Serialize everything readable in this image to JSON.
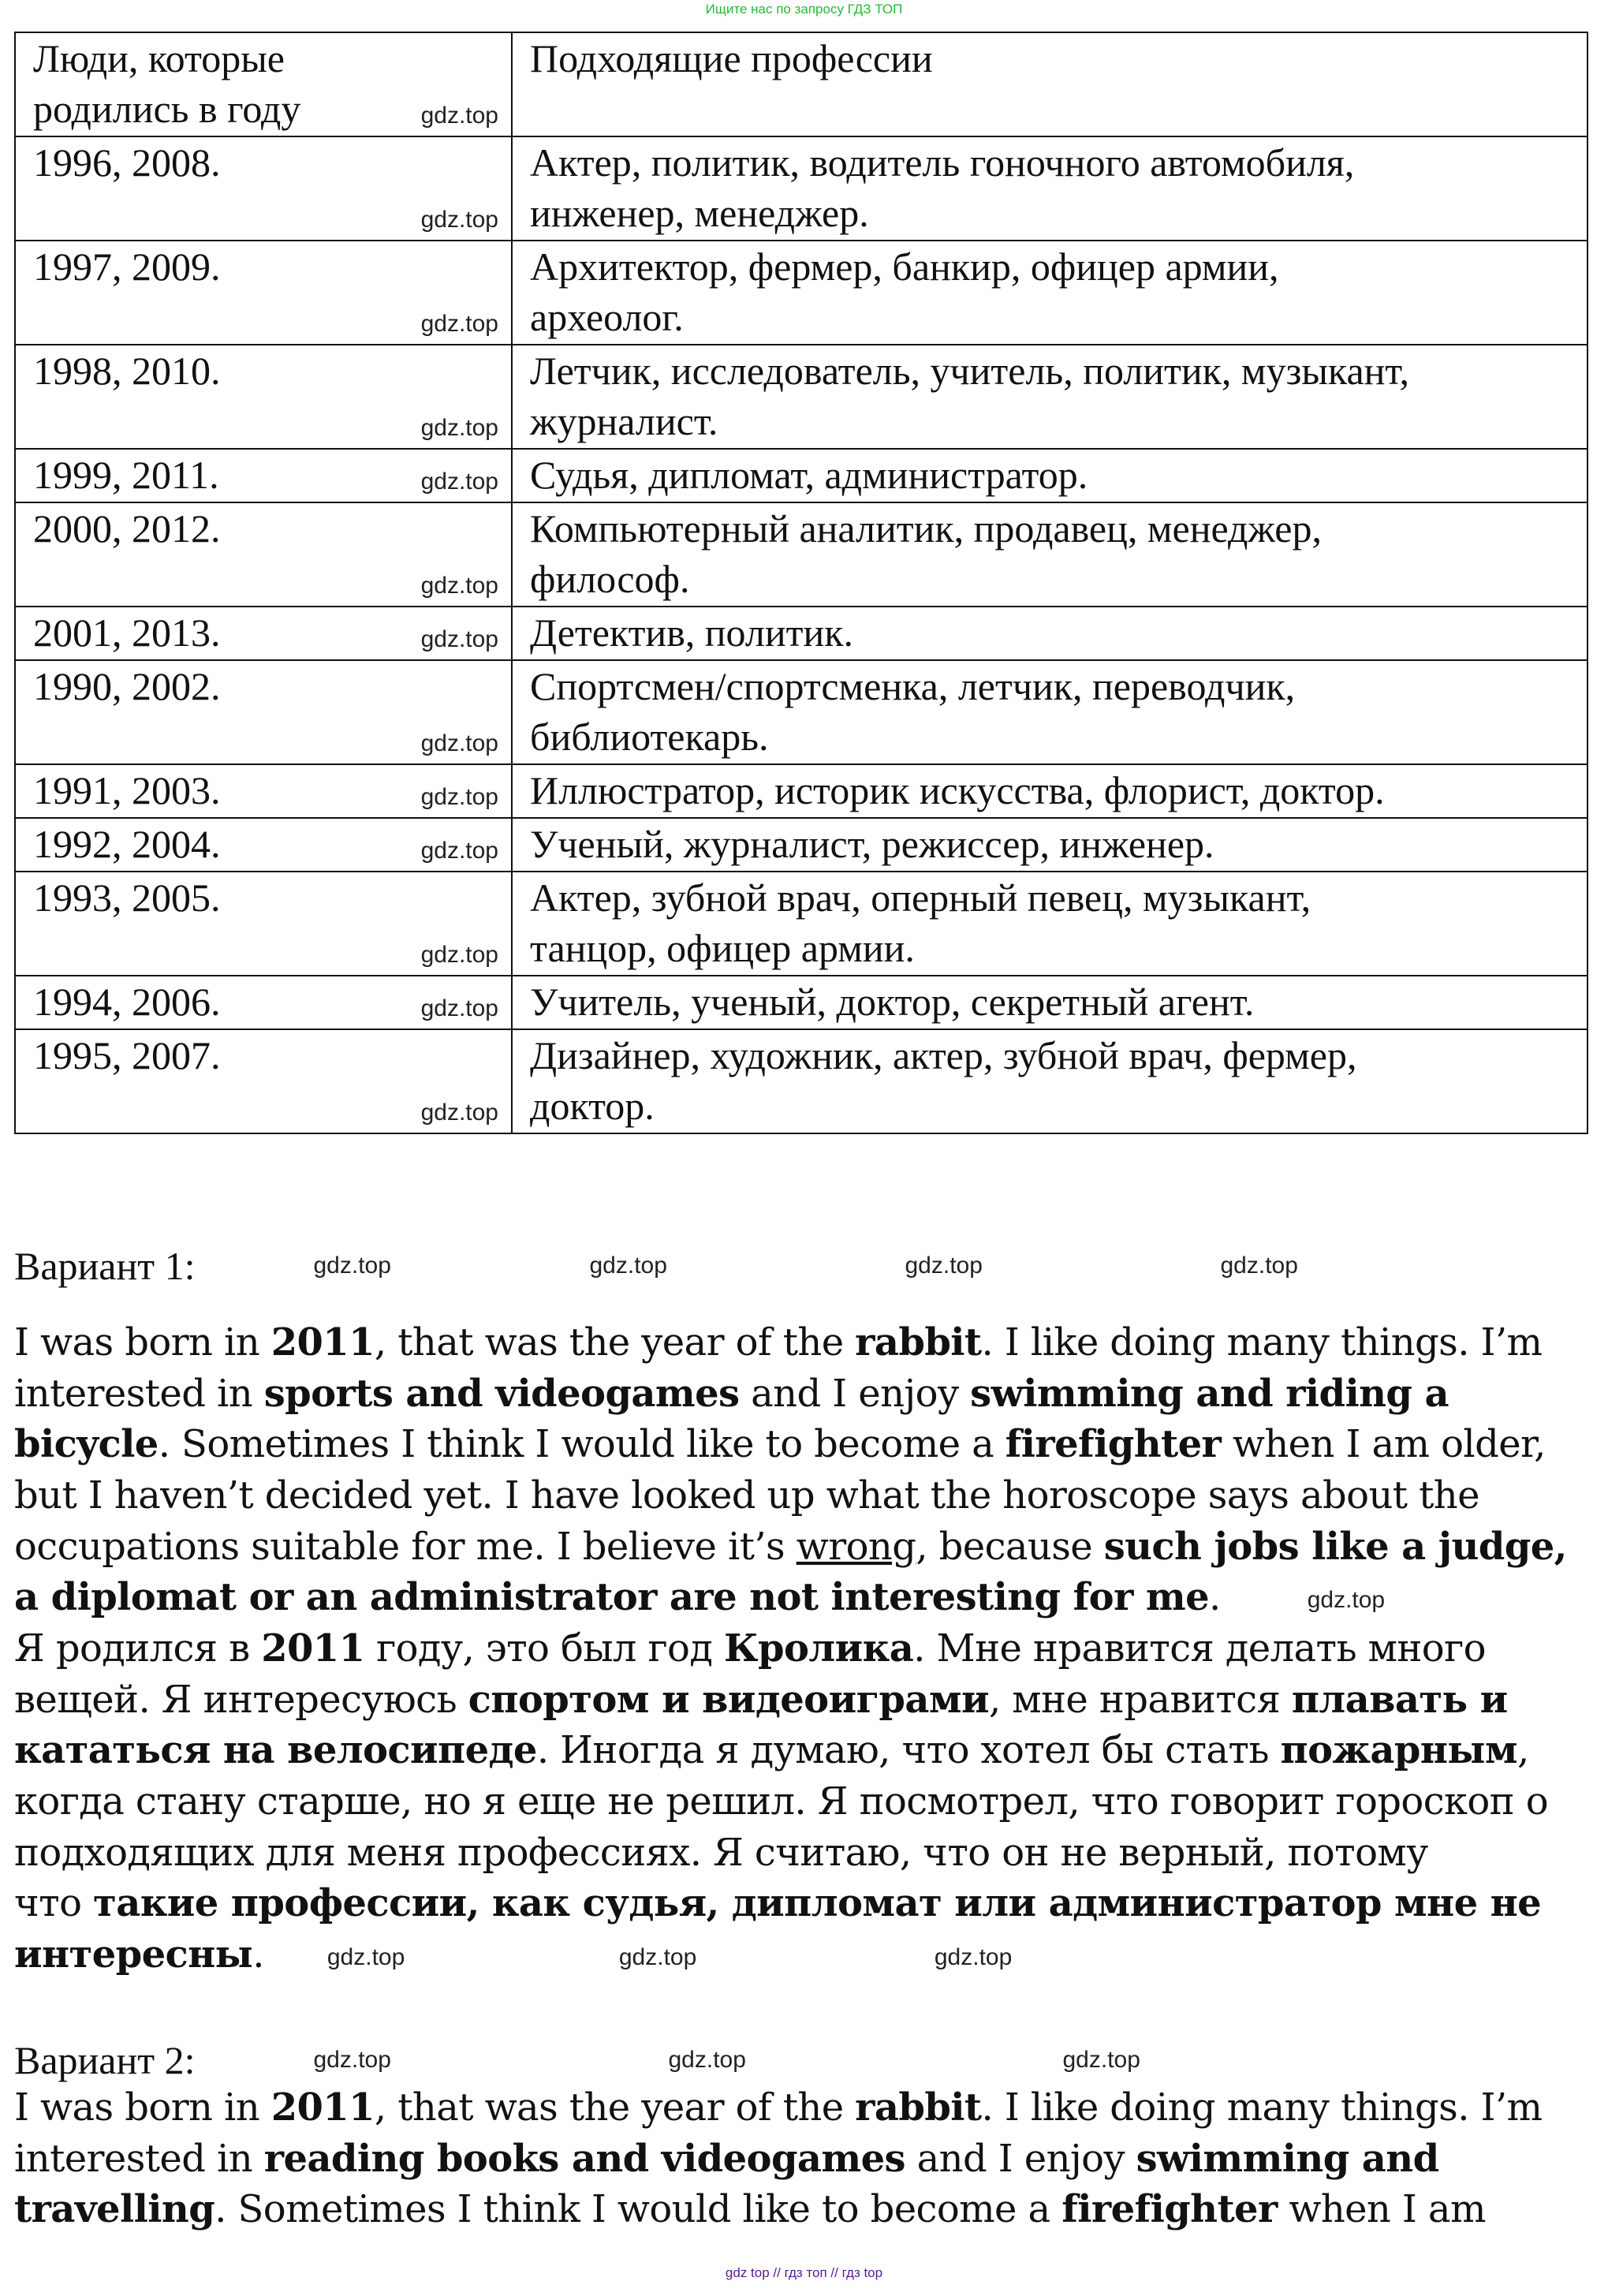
{
  "top_note": "Ищите нас по запросу ГДЗ ТОП",
  "watermark": "gdz.top",
  "footer": "gdz top  //  гдз топ  //  гдз top",
  "table": {
    "headers": [
      "Люди, которые\nродились в году",
      "Подходящие профессии"
    ],
    "rows": [
      [
        "1996, 2008.",
        "Актер, политик, водитель гоночного автомобиля,\nинженер, менеджер."
      ],
      [
        "1997, 2009.",
        "Архитектор, фермер, банкир, офицер армии,\nархеолог."
      ],
      [
        "1998, 2010.",
        "Летчик, исследователь, учитель, политик, музыкант,\nжурналист."
      ],
      [
        "1999, 2011.",
        "Судья, дипломат, администратор."
      ],
      [
        "2000, 2012.",
        "Компьютерный аналитик, продавец, менеджер,\nфилософ."
      ],
      [
        "2001, 2013.",
        "Детектив, политик."
      ],
      [
        "1990, 2002.",
        "Спортсмен/спортсменка, летчик, переводчик,\nбиблиотекарь."
      ],
      [
        "1991, 2003.",
        "Иллюстратор, историк искусства, флорист, доктор."
      ],
      [
        "1992, 2004.",
        "Ученый, журналист, режиссер, инженер."
      ],
      [
        "1993, 2005.",
        "Актер, зубной врач, оперный певец, музыкант,\nтанцор, офицер армии."
      ],
      [
        "1994, 2006.",
        "Учитель, ученый, доктор, секретный агент."
      ],
      [
        "1995, 2007.",
        "Дизайнер, художник, актер, зубной врач, фермер,\nдоктор."
      ]
    ]
  },
  "variant1": {
    "title": "Вариант 1:",
    "english": [
      [
        {
          "t": "I was born in "
        },
        {
          "t": "2011",
          "b": true
        },
        {
          "t": ", that was the year of the "
        },
        {
          "t": "rabbit",
          "b": true
        },
        {
          "t": ". I like doing many things. I’m"
        }
      ],
      [
        {
          "t": "interested in "
        },
        {
          "t": "sports and videogames",
          "b": true
        },
        {
          "t": " and I enjoy "
        },
        {
          "t": "swimming and riding a",
          "b": true
        }
      ],
      [
        {
          "t": "bicycle",
          "b": true
        },
        {
          "t": ". Sometimes I think I would like to become a "
        },
        {
          "t": "firefighter",
          "b": true
        },
        {
          "t": " when I am older,"
        }
      ],
      [
        {
          "t": "but I haven’t decided yet. I have looked up what the horoscope says about the"
        }
      ],
      [
        {
          "t": "occupations suitable for me. I believe it’s "
        },
        {
          "t": "wrong",
          "u": true
        },
        {
          "t": ", because "
        },
        {
          "t": "such jobs like a judge,",
          "b": true
        }
      ],
      [
        {
          "t": "a diplomat or an administrator are not interesting for me",
          "b": true
        },
        {
          "t": "."
        }
      ]
    ],
    "russian": [
      [
        {
          "t": "Я родился в "
        },
        {
          "t": "2011",
          "b": true
        },
        {
          "t": " году, это был год "
        },
        {
          "t": "Кролика",
          "b": true
        },
        {
          "t": ". Мне нравится делать много"
        }
      ],
      [
        {
          "t": "вещей. Я интересуюсь "
        },
        {
          "t": "спортом и видеоиграми",
          "b": true
        },
        {
          "t": ", мне нравится "
        },
        {
          "t": "плавать и",
          "b": true
        }
      ],
      [
        {
          "t": "кататься на велосипеде",
          "b": true
        },
        {
          "t": ". Иногда я думаю, что хотел бы стать "
        },
        {
          "t": "пожарным",
          "b": true
        },
        {
          "t": ","
        }
      ],
      [
        {
          "t": "когда стану старше, но я еще не решил. Я посмотрел, что говорит гороскоп о"
        }
      ],
      [
        {
          "t": "подходящих для меня профессиях. Я считаю, что он не верный, потому"
        }
      ],
      [
        {
          "t": "что "
        },
        {
          "t": "такие профессии, как судья, дипломат или администратор мне не",
          "b": true
        }
      ],
      [
        {
          "t": "интересны",
          "b": true
        },
        {
          "t": "."
        }
      ]
    ]
  },
  "variant2": {
    "title": "Вариант 2:",
    "english": [
      [
        {
          "t": "I was born in "
        },
        {
          "t": "2011",
          "b": true
        },
        {
          "t": ", that was the year of the "
        },
        {
          "t": "rabbit",
          "b": true
        },
        {
          "t": ". I like doing many things. I’m"
        }
      ],
      [
        {
          "t": "interested in "
        },
        {
          "t": "reading books and videogames",
          "b": true
        },
        {
          "t": " and I enjoy "
        },
        {
          "t": "swimming and",
          "b": true
        }
      ],
      [
        {
          "t": "travelling",
          "b": true
        },
        {
          "t": ". Sometimes I think I would like to become a "
        },
        {
          "t": "firefighter",
          "b": true
        },
        {
          "t": " when I am"
        }
      ]
    ]
  }
}
